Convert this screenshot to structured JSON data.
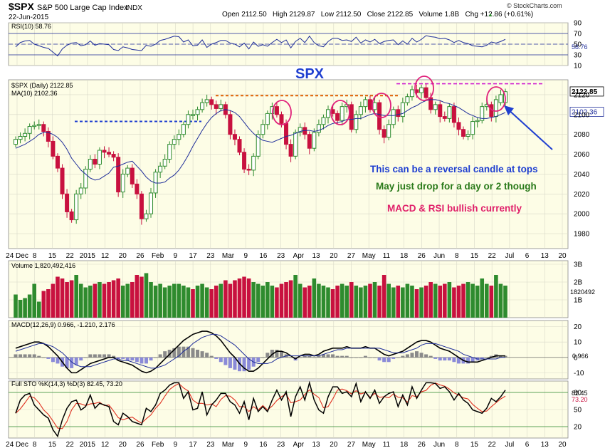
{
  "header": {
    "symbol": "$SPX",
    "name": "S&P 500 Large Cap Index",
    "exchange": "INDX",
    "date": "22-Jun-2015",
    "quote": "Open 2112.50   High 2129.87   Low 2112.50   Close 2122.85   Volume 1.8B   Chg +12.86 (+0.61%)",
    "quote_arrow": "▲",
    "brand": "© StockCharts.com"
  },
  "colors": {
    "panel_bg": "#fdfde6",
    "up": "#2e8b2e",
    "down": "#c8113f",
    "ma": "#1f2e9a",
    "annotation_blue": "#1f3fd0",
    "annotation_green": "#2a7a1a",
    "annotation_pink": "#e0206a",
    "circle": "#e0207a",
    "orange_line": "#e06000",
    "magenta_line": "#d020d0"
  },
  "chart_data": [
    {
      "type": "line",
      "panel": "rsi",
      "label": "RSI(10) 58.76",
      "last_value": "58.76",
      "y_ticks": [
        "90",
        "70",
        "50",
        "30",
        "10"
      ],
      "ylim": [
        10,
        90
      ],
      "series": [
        {
          "name": "RSI(10)",
          "values": [
            45,
            53,
            56,
            57,
            50,
            47,
            44,
            42,
            35,
            28,
            41,
            48,
            52,
            53,
            47,
            49,
            56,
            48,
            51,
            50,
            49,
            40,
            38,
            45,
            43,
            40,
            39,
            38,
            48,
            46,
            50,
            57,
            59,
            62,
            65,
            64,
            54,
            58,
            47,
            48,
            58,
            44,
            50,
            53,
            57,
            57,
            52,
            50,
            45,
            52,
            41,
            54,
            46,
            49,
            46,
            53,
            59,
            53,
            58,
            43,
            55,
            61,
            53,
            65,
            53,
            47,
            45,
            55,
            61,
            61,
            57,
            58,
            55,
            63,
            52,
            58,
            54,
            59,
            51,
            55,
            57,
            58,
            49,
            56,
            50,
            61,
            54,
            59,
            66,
            64,
            63,
            60,
            61,
            58,
            53,
            57,
            53,
            51,
            47,
            46,
            45,
            48,
            54,
            52,
            55,
            59
          ]
        }
      ]
    },
    {
      "type": "candlestick",
      "panel": "price",
      "title": "SPX",
      "label": "$SPX (Daily) 2122.85",
      "ma_label": "MA(10) 2102.36",
      "last_close_label": "2122.85",
      "ma_last_label": "2102.36",
      "ylim": [
        1965,
        2135
      ],
      "y_ticks": [
        "2120",
        "2100",
        "2080",
        "2060",
        "2040",
        "2020",
        "2000",
        "1980"
      ],
      "x_ticks": [
        "24 Dec",
        "8",
        "15",
        "22",
        "2015",
        "12",
        "20",
        "26",
        "Feb",
        "9",
        "17",
        "23",
        "Mar",
        "9",
        "16",
        "23",
        "Apr",
        "13",
        "20",
        "27",
        "May",
        "11",
        "18",
        "26",
        "Jun",
        "8",
        "15",
        "22",
        "Jul",
        "6",
        "13",
        "20"
      ],
      "close": [
        2075,
        2078,
        2081,
        2088,
        2089,
        2090,
        2083,
        2073,
        2058,
        2046,
        2020,
        2002,
        1994,
        2020,
        2026,
        2045,
        2055,
        2050,
        2064,
        2062,
        2060,
        2057,
        2022,
        2040,
        2046,
        2030,
        2020,
        1995,
        2000,
        2021,
        2042,
        2048,
        2055,
        2070,
        2075,
        2080,
        2090,
        2100,
        2100,
        2105,
        2112,
        2115,
        2110,
        2106,
        2110,
        2100,
        2080,
        2075,
        2062,
        2045,
        2044,
        2058,
        2080,
        2090,
        2101,
        2108,
        2100,
        2091,
        2070,
        2058,
        2082,
        2087,
        2080,
        2066,
        2082,
        2090,
        2097,
        2105,
        2101,
        2094,
        2108,
        2110,
        2085,
        2100,
        2108,
        2115,
        2105,
        2112,
        2085,
        2077,
        2090,
        2105,
        2098,
        2112,
        2118,
        2125,
        2122,
        2127,
        2117,
        2105,
        2110,
        2098,
        2096,
        2108,
        2092,
        2085,
        2078,
        2080,
        2093,
        2094,
        2108,
        2110,
        2098,
        2115,
        2120,
        2123
      ],
      "open": [
        2070,
        2075,
        2078,
        2081,
        2088,
        2089,
        2090,
        2083,
        2073,
        2058,
        2046,
        2020,
        2002,
        1994,
        2020,
        2026,
        2045,
        2055,
        2050,
        2064,
        2062,
        2060,
        2057,
        2022,
        2040,
        2046,
        2030,
        2020,
        1995,
        2000,
        2021,
        2042,
        2048,
        2055,
        2070,
        2075,
        2080,
        2090,
        2100,
        2100,
        2105,
        2112,
        2115,
        2110,
        2106,
        2110,
        2100,
        2080,
        2075,
        2062,
        2045,
        2044,
        2058,
        2080,
        2090,
        2101,
        2108,
        2100,
        2091,
        2070,
        2058,
        2082,
        2087,
        2080,
        2066,
        2082,
        2090,
        2097,
        2105,
        2101,
        2094,
        2108,
        2110,
        2085,
        2100,
        2108,
        2115,
        2105,
        2112,
        2085,
        2077,
        2090,
        2105,
        2098,
        2112,
        2118,
        2125,
        2122,
        2127,
        2117,
        2105,
        2110,
        2098,
        2096,
        2108,
        2092,
        2085,
        2078,
        2080,
        2093,
        2094,
        2108,
        2110,
        2098,
        2112,
        2112
      ],
      "ma10": [
        2066,
        2068,
        2070,
        2073,
        2076,
        2080,
        2082,
        2082,
        2080,
        2077,
        2072,
        2065,
        2056,
        2050,
        2044,
        2040,
        2036,
        2034,
        2035,
        2038,
        2041,
        2047,
        2048,
        2050,
        2052,
        2053,
        2048,
        2043,
        2037,
        2033,
        2031,
        2031,
        2032,
        2036,
        2039,
        2044,
        2051,
        2059,
        2068,
        2076,
        2084,
        2091,
        2097,
        2101,
        2104,
        2105,
        2104,
        2102,
        2098,
        2092,
        2086,
        2081,
        2077,
        2074,
        2073,
        2072,
        2074,
        2076,
        2078,
        2079,
        2081,
        2083,
        2084,
        2084,
        2083,
        2084,
        2086,
        2089,
        2091,
        2092,
        2093,
        2095,
        2095,
        2096,
        2096,
        2098,
        2100,
        2101,
        2100,
        2099,
        2099,
        2099,
        2100,
        2101,
        2104,
        2107,
        2109,
        2112,
        2114,
        2115,
        2115,
        2114,
        2112,
        2111,
        2109,
        2107,
        2104,
        2101,
        2099,
        2097,
        2096,
        2096,
        2097,
        2098,
        2100,
        2102
      ]
    },
    {
      "type": "bar",
      "panel": "volume",
      "label": "Volume 1,820,492,416",
      "last_value": "1820492",
      "y_ticks": [
        "3B",
        "2B",
        "1B"
      ],
      "ylim": [
        0,
        3.2
      ]
    },
    {
      "type": "line",
      "panel": "macd",
      "label": "MACD(12,26,9) 0.966, -1.210, 2.176",
      "last_value": "0.966",
      "y_ticks": [
        "20",
        "10",
        "0",
        "-10"
      ],
      "ylim": [
        -14,
        24
      ]
    },
    {
      "type": "line",
      "panel": "stochastic",
      "label": "Full STO %K(14,3) %D(3) 82.45, 73.20",
      "last_k": "82.45",
      "last_d": "73.20",
      "y_ticks": [
        "80",
        "50",
        "20"
      ],
      "ylim": [
        0,
        100
      ]
    }
  ],
  "annotations": {
    "reversal": "This can be a reversal candle at tops",
    "drop": "May just drop for a day or 2 though",
    "bullish": "MACD & RSI bullish currently"
  },
  "volume_values": [
    1.3,
    1.0,
    1.1,
    1.3,
    1.9,
    0.9,
    1.5,
    1.6,
    1.9,
    2.3,
    2.2,
    2.0,
    2.1,
    2.4,
    1.9,
    1.7,
    1.8,
    1.9,
    2.0,
    1.9,
    2.0,
    2.1,
    2.2,
    1.8,
    1.9,
    2.0,
    2.4,
    2.3,
    2.5,
    2.0,
    1.8,
    1.9,
    1.7,
    1.8,
    1.9,
    1.9,
    1.8,
    1.7,
    1.6,
    1.8,
    1.9,
    1.7,
    1.6,
    1.8,
    1.9,
    2.1,
    1.9,
    2.1,
    2.2,
    2.3,
    2.2,
    2.0,
    1.9,
    1.8,
    2.0,
    1.8,
    1.7,
    1.9,
    2.0,
    2.1,
    2.4,
    1.9,
    1.7,
    1.8,
    2.2,
    1.9,
    1.8,
    1.7,
    1.6,
    1.8,
    1.9,
    1.8,
    2.0,
    1.8,
    1.7,
    1.8,
    1.9,
    2.0,
    1.8,
    2.4,
    1.9,
    1.7,
    1.8,
    1.7,
    1.9,
    1.8,
    1.6,
    1.7,
    1.8,
    2.0,
    1.9,
    1.8,
    1.9,
    2.0,
    1.7,
    1.8,
    1.9,
    2.0,
    1.9,
    1.8,
    2.2,
    1.9,
    1.8,
    2.4,
    1.9,
    1.8
  ],
  "volume_up": [
    1,
    1,
    1,
    1,
    1,
    1,
    0,
    0,
    0,
    0,
    0,
    0,
    0,
    1,
    1,
    1,
    1,
    0,
    1,
    0,
    0,
    0,
    0,
    1,
    1,
    0,
    0,
    0,
    1,
    1,
    1,
    1,
    1,
    1,
    1,
    1,
    1,
    1,
    0,
    1,
    1,
    1,
    0,
    0,
    1,
    0,
    0,
    0,
    0,
    0,
    0,
    1,
    1,
    1,
    1,
    1,
    0,
    0,
    0,
    0,
    1,
    1,
    0,
    0,
    1,
    1,
    1,
    1,
    0,
    0,
    1,
    1,
    0,
    1,
    1,
    1,
    0,
    1,
    0,
    0,
    1,
    1,
    0,
    1,
    1,
    1,
    0,
    1,
    0,
    0,
    1,
    0,
    0,
    1,
    0,
    0,
    0,
    1,
    1,
    1,
    1,
    1,
    0,
    1,
    1,
    1
  ],
  "macd_line": [
    6,
    7,
    8,
    9,
    10,
    10,
    9,
    7,
    4,
    1,
    -3,
    -7,
    -10,
    -10,
    -8,
    -6,
    -4,
    -3,
    -2,
    -1,
    0,
    0,
    -2,
    -3,
    -4,
    -5,
    -7,
    -9,
    -10,
    -9,
    -7,
    -4,
    -1,
    2,
    5,
    8,
    11,
    13,
    15,
    16,
    17,
    17,
    16,
    14,
    11,
    7,
    3,
    0,
    -4,
    -7,
    -9,
    -9,
    -7,
    -4,
    -1,
    2,
    4,
    4,
    3,
    1,
    -1,
    1,
    2,
    2,
    1,
    2,
    4,
    5,
    6,
    6,
    6,
    7,
    6,
    6,
    6,
    7,
    6,
    6,
    4,
    2,
    1,
    2,
    3,
    4,
    6,
    8,
    10,
    11,
    11,
    10,
    8,
    6,
    5,
    4,
    2,
    0,
    -2,
    -3,
    -3,
    -3,
    -2,
    -1,
    0,
    1,
    1,
    1
  ],
  "macd_signal": [
    4,
    5,
    6,
    7,
    8,
    9,
    9,
    8,
    7,
    5,
    3,
    0,
    -3,
    -5,
    -6,
    -6,
    -6,
    -5,
    -4,
    -3,
    -2,
    -1,
    -1,
    -2,
    -2,
    -3,
    -4,
    -5,
    -6,
    -7,
    -7,
    -6,
    -5,
    -3,
    -1,
    1,
    4,
    6,
    9,
    11,
    13,
    14,
    15,
    15,
    14,
    12,
    10,
    8,
    5,
    2,
    -1,
    -3,
    -4,
    -4,
    -4,
    -3,
    -1,
    0,
    1,
    1,
    1,
    1,
    1,
    1,
    1,
    1,
    2,
    3,
    4,
    5,
    5,
    6,
    6,
    6,
    6,
    6,
    6,
    6,
    6,
    5,
    4,
    3,
    3,
    3,
    4,
    5,
    6,
    8,
    9,
    9,
    9,
    8,
    7,
    6,
    5,
    4,
    2,
    1,
    0,
    -1,
    -1,
    -1,
    -1,
    -1,
    0,
    0
  ]
}
